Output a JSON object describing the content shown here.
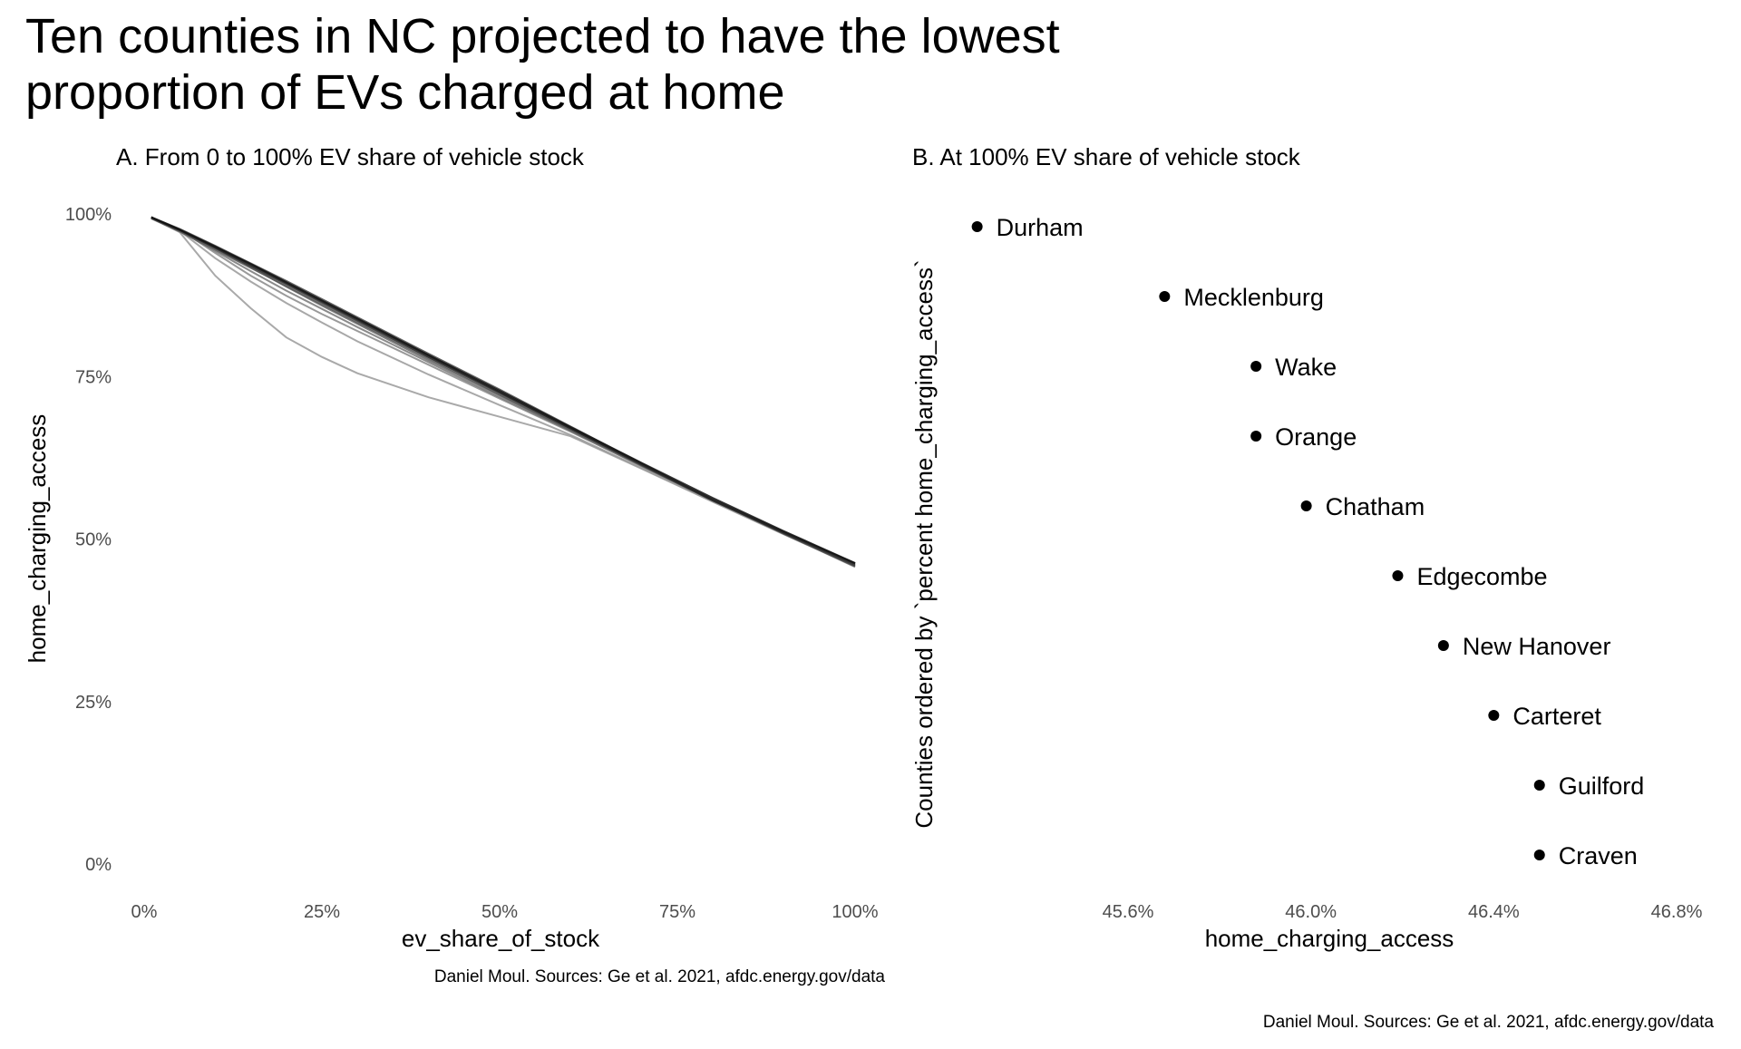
{
  "title_line1": "Ten counties in NC projected to have the lowest",
  "title_line2": "proportion of EVs charged at home",
  "caption": "Daniel Moul. Sources: Ge et al. 2021, afdc.energy.gov/data",
  "chart_data": [
    {
      "type": "line",
      "subtitle": "A. From 0 to 100% EV share of vehicle stock",
      "xlabel": "ev_share_of_stock",
      "ylabel": "home_charging_access",
      "xlim": [
        0,
        100
      ],
      "ylim": [
        0,
        100
      ],
      "xticks": [
        "0%",
        "25%",
        "50%",
        "75%",
        "100%"
      ],
      "yticks": [
        "0%",
        "25%",
        "50%",
        "75%",
        "100%"
      ],
      "grid": false,
      "x": [
        1,
        5,
        10,
        15,
        20,
        25,
        30,
        40,
        50,
        60,
        70,
        80,
        90,
        100
      ],
      "series": [
        {
          "values": [
            99.5,
            97.6,
            95.0,
            92.3,
            89.5,
            86.7,
            83.9,
            78.3,
            72.8,
            67.2,
            61.7,
            56.3,
            51.2,
            46.3
          ]
        },
        {
          "values": [
            99.5,
            97.5,
            94.8,
            92.0,
            89.2,
            86.4,
            83.6,
            78.0,
            72.5,
            67.0,
            61.5,
            56.0,
            51.0,
            46.2
          ]
        },
        {
          "values": [
            99.4,
            97.5,
            94.9,
            92.2,
            89.4,
            86.6,
            83.8,
            78.2,
            72.6,
            67.0,
            61.4,
            55.9,
            50.9,
            46.0
          ]
        },
        {
          "values": [
            99.5,
            97.7,
            95.1,
            92.4,
            89.7,
            86.9,
            84.1,
            78.5,
            73.0,
            67.3,
            61.6,
            56.0,
            50.8,
            45.8
          ]
        },
        {
          "values": [
            99.3,
            97.3,
            94.5,
            91.7,
            88.9,
            86.1,
            83.3,
            77.8,
            72.2,
            66.8,
            61.3,
            55.9,
            51.0,
            46.3
          ]
        },
        {
          "values": [
            99.5,
            97.6,
            94.7,
            91.8,
            88.8,
            85.9,
            83.1,
            77.5,
            72.1,
            66.7,
            61.3,
            56.1,
            51.1,
            46.2
          ]
        },
        {
          "values": [
            99.4,
            97.4,
            94.3,
            91.2,
            88.2,
            85.4,
            82.6,
            77.2,
            71.8,
            66.6,
            61.2,
            56.0,
            51.0,
            46.1
          ]
        },
        {
          "values": [
            99.5,
            97.6,
            94.0,
            90.5,
            87.4,
            84.6,
            82.0,
            76.8,
            71.6,
            66.5,
            61.2,
            55.9,
            50.8,
            45.7
          ]
        },
        {
          "values": [
            99.4,
            97.4,
            93.2,
            89.6,
            86.3,
            83.3,
            80.4,
            75.3,
            70.6,
            66.0,
            60.9,
            55.8,
            50.8,
            45.9
          ]
        },
        {
          "values": [
            99.4,
            97.2,
            90.5,
            85.5,
            81.0,
            78.0,
            75.5,
            71.8,
            68.8,
            65.8,
            60.8,
            55.7,
            50.7,
            45.8
          ]
        }
      ]
    },
    {
      "type": "scatter",
      "subtitle": "B. At 100% EV share of vehicle stock",
      "xlabel": "home_charging_access",
      "ylabel": "Counties ordered by `percent home_charging_access`",
      "xlim": [
        45.6,
        46.8
      ],
      "xticks": [
        "45.6%",
        "46.0%",
        "46.4%",
        "46.8%"
      ],
      "xtick_values": [
        45.6,
        46.0,
        46.4,
        46.8
      ],
      "grid": false,
      "categories": [
        "Durham",
        "Mecklenburg",
        "Wake",
        "Orange",
        "Chatham",
        "Edgecombe",
        "New Hanover",
        "Carteret",
        "Guilford",
        "Craven"
      ],
      "values": [
        45.27,
        45.68,
        45.88,
        45.88,
        45.99,
        46.19,
        46.29,
        46.4,
        46.5,
        46.5
      ]
    }
  ]
}
